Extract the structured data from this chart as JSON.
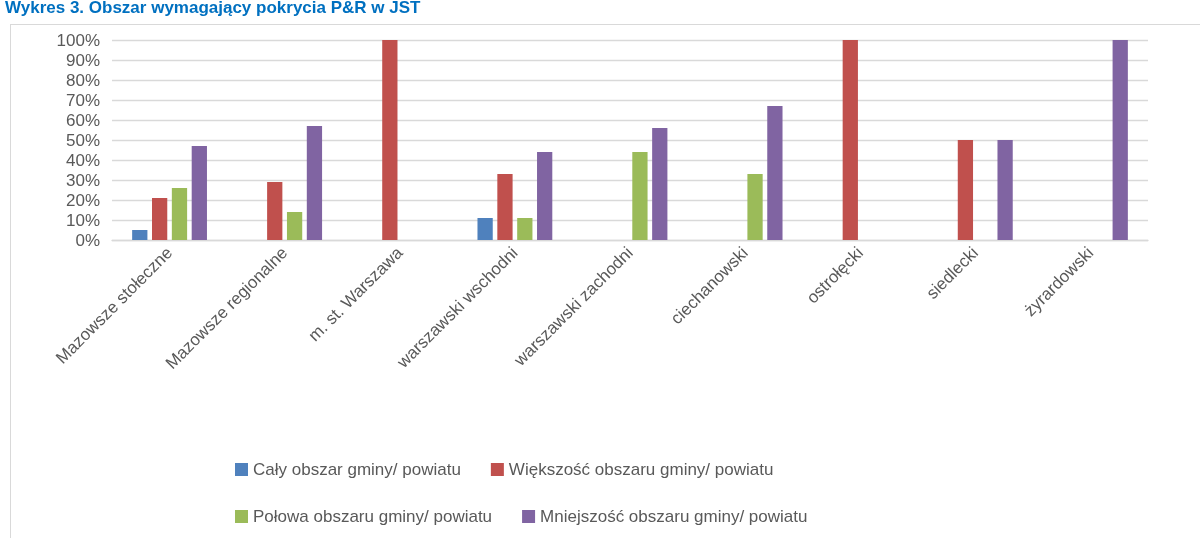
{
  "chart_data": {
    "type": "bar",
    "title": "Wykres 3. Obszar wymagający pokrycia P&R w JST",
    "categories": [
      "Mazowsze stołeczne",
      "Mazowsze regionalne",
      "m. st. Warszawa",
      "warszawski wschodni",
      "warszawski zachodni",
      "ciechanowski",
      "ostrołęcki",
      "siedlecki",
      "żyrardowski"
    ],
    "series": [
      {
        "name": "Cały obszar gminy/ powiatu",
        "color": "#4f81bd",
        "values": [
          5,
          null,
          null,
          11,
          null,
          null,
          null,
          null,
          null
        ]
      },
      {
        "name": "Większość obszaru gminy/ powiatu",
        "color": "#c0504d",
        "values": [
          21,
          29,
          100,
          33,
          null,
          null,
          100,
          50,
          null
        ]
      },
      {
        "name": "Połowa obszaru gminy/ powiatu",
        "color": "#9bbb59",
        "values": [
          26,
          14,
          null,
          11,
          44,
          33,
          null,
          null,
          null
        ]
      },
      {
        "name": "Mniejszość obszaru gminy/ powiatu",
        "color": "#8064a2",
        "values": [
          47,
          57,
          null,
          44,
          56,
          67,
          null,
          50,
          100
        ]
      }
    ],
    "ylim": [
      0,
      100
    ],
    "yticks": [
      {
        "value": 0,
        "label": "0%"
      },
      {
        "value": 10,
        "label": "10%"
      },
      {
        "value": 20,
        "label": "20%"
      },
      {
        "value": 30,
        "label": "30%"
      },
      {
        "value": 40,
        "label": "40%"
      },
      {
        "value": 50,
        "label": "50%"
      },
      {
        "value": 60,
        "label": "60%"
      },
      {
        "value": 70,
        "label": "70%"
      },
      {
        "value": 80,
        "label": "80%"
      },
      {
        "value": 90,
        "label": "90%"
      },
      {
        "value": 100,
        "label": "100%"
      }
    ],
    "grid": "y",
    "legend": "bottom"
  }
}
